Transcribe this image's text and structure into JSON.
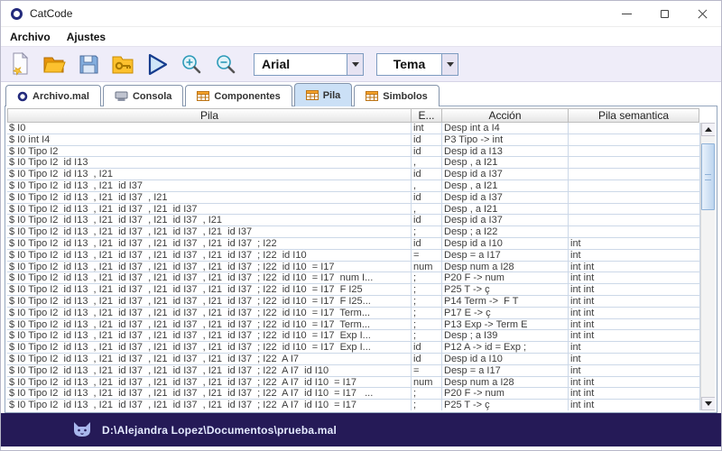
{
  "window": {
    "title": "CatCode"
  },
  "menu": {
    "items": [
      "Archivo",
      "Ajustes"
    ]
  },
  "toolbar": {
    "font_combo_value": "Arial",
    "theme_combo_value": "Tema",
    "icons": [
      "new-file-icon",
      "open-file-icon",
      "save-icon",
      "key-folder-icon",
      "run-icon",
      "zoom-in-icon",
      "zoom-out-icon"
    ]
  },
  "tabs": {
    "selected": "Pila",
    "items": [
      {
        "label": "Archivo.mal",
        "icon": "ring-icon"
      },
      {
        "label": "Consola",
        "icon": "console-icon"
      },
      {
        "label": "Componentes",
        "icon": "table-icon"
      },
      {
        "label": "Pila",
        "icon": "table-icon"
      },
      {
        "label": "Simbolos",
        "icon": "table-icon"
      }
    ]
  },
  "table": {
    "columns": [
      "Pila",
      "E...",
      "Acción",
      "Pila semantica"
    ],
    "rows": [
      [
        "$ I0",
        "int",
        "Desp int a I4",
        ""
      ],
      [
        "$ I0 int I4",
        "id",
        "P3 Tipo -> int",
        ""
      ],
      [
        "$ I0 Tipo I2",
        "id",
        "Desp id a I13",
        ""
      ],
      [
        "$ I0 Tipo I2  id I13",
        ",",
        "Desp , a I21",
        ""
      ],
      [
        "$ I0 Tipo I2  id I13  , I21",
        "id",
        "Desp id a I37",
        ""
      ],
      [
        "$ I0 Tipo I2  id I13  , I21  id I37",
        ",",
        "Desp , a I21",
        ""
      ],
      [
        "$ I0 Tipo I2  id I13  , I21  id I37  , I21",
        "id",
        "Desp id a I37",
        ""
      ],
      [
        "$ I0 Tipo I2  id I13  , I21  id I37  , I21  id I37",
        ",",
        "Desp , a I21",
        ""
      ],
      [
        "$ I0 Tipo I2  id I13  , I21  id I37  , I21  id I37  , I21",
        "id",
        "Desp id a I37",
        ""
      ],
      [
        "$ I0 Tipo I2  id I13  , I21  id I37  , I21  id I37  , I21  id I37",
        ";",
        "Desp ; a I22",
        ""
      ],
      [
        "$ I0 Tipo I2  id I13  , I21  id I37  , I21  id I37  , I21  id I37  ; I22",
        "id",
        "Desp id a I10",
        "int"
      ],
      [
        "$ I0 Tipo I2  id I13  , I21  id I37  , I21  id I37  , I21  id I37  ; I22  id I10",
        "=",
        "Desp = a I17",
        "int"
      ],
      [
        "$ I0 Tipo I2  id I13  , I21  id I37  , I21  id I37  , I21  id I37  ; I22  id I10  = I17",
        "num",
        "Desp num a I28",
        "int int"
      ],
      [
        "$ I0 Tipo I2  id I13  , I21  id I37  , I21  id I37  , I21  id I37  ; I22  id I10  = I17  num I...",
        ";",
        "P20 F -> num",
        "int int"
      ],
      [
        "$ I0 Tipo I2  id I13  , I21  id I37  , I21  id I37  , I21  id I37  ; I22  id I10  = I17  F I25",
        ";",
        "P25 T -> ç",
        "int int"
      ],
      [
        "$ I0 Tipo I2  id I13  , I21  id I37  , I21  id I37  , I21  id I37  ; I22  id I10  = I17  F I25...",
        ";",
        "P14 Term ->  F T",
        "int int"
      ],
      [
        "$ I0 Tipo I2  id I13  , I21  id I37  , I21  id I37  , I21  id I37  ; I22  id I10  = I17  Term...",
        ";",
        "P17 E -> ç",
        "int int"
      ],
      [
        "$ I0 Tipo I2  id I13  , I21  id I37  , I21  id I37  , I21  id I37  ; I22  id I10  = I17  Term...",
        ";",
        "P13 Exp -> Term E",
        "int int"
      ],
      [
        "$ I0 Tipo I2  id I13  , I21  id I37  , I21  id I37  , I21  id I37  ; I22  id I10  = I17  Exp I...",
        ";",
        "Desp ; a I39",
        "int int"
      ],
      [
        "$ I0 Tipo I2  id I13  , I21  id I37  , I21  id I37  , I21  id I37  ; I22  id I10  = I17  Exp I...",
        "id",
        "P12 A -> id = Exp ;",
        "int"
      ],
      [
        "$ I0 Tipo I2  id I13  , I21  id I37  , I21  id I37  , I21  id I37  ; I22  A I7",
        "id",
        "Desp id a I10",
        "int"
      ],
      [
        "$ I0 Tipo I2  id I13  , I21  id I37  , I21  id I37  , I21  id I37  ; I22  A I7  id I10",
        "=",
        "Desp = a I17",
        "int"
      ],
      [
        "$ I0 Tipo I2  id I13  , I21  id I37  , I21  id I37  , I21  id I37  ; I22  A I7  id I10  = I17",
        "num",
        "Desp num a I28",
        "int int"
      ],
      [
        "$ I0 Tipo I2  id I13  , I21  id I37  , I21  id I37  , I21  id I37  ; I22  A I7  id I10  = I17   ...",
        ";",
        "P20 F -> num",
        "int int"
      ],
      [
        "$ I0 Tipo I2  id I13  , I21  id I37  , I21  id I37  , I21  id I37  ; I22  A I7  id I10  = I17",
        ";",
        "P25 T -> ç",
        "int int"
      ]
    ]
  },
  "statusbar": {
    "path": "D:\\Alejandra Lopez\\Documentos\\prueba.mal",
    "icon": "cat-icon"
  }
}
